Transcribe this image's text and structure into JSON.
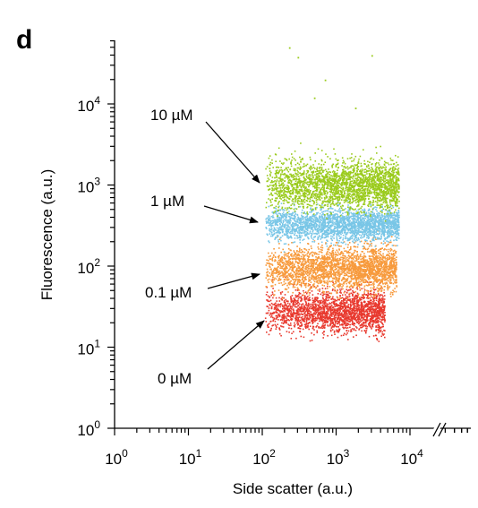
{
  "panel_label": "d",
  "chart_data": {
    "type": "scatter",
    "xlabel": "Side scatter (a.u.)",
    "ylabel": "Fluorescence (a.u.)",
    "x_scale": "log",
    "y_scale": "log",
    "xlim": [
      1,
      80000
    ],
    "ylim": [
      1,
      60000
    ],
    "x_ticks": [
      {
        "value": 1,
        "base": "10",
        "exp": "0"
      },
      {
        "value": 10,
        "base": "10",
        "exp": "1"
      },
      {
        "value": 100,
        "base": "10",
        "exp": "2"
      },
      {
        "value": 1000,
        "base": "10",
        "exp": "3"
      },
      {
        "value": 10000,
        "base": "10",
        "exp": "4"
      }
    ],
    "y_ticks": [
      {
        "value": 1,
        "base": "10",
        "exp": "0"
      },
      {
        "value": 10,
        "base": "10",
        "exp": "1"
      },
      {
        "value": 100,
        "base": "10",
        "exp": "2"
      },
      {
        "value": 1000,
        "base": "10",
        "exp": "3"
      },
      {
        "value": 10000,
        "base": "10",
        "exp": "4"
      }
    ],
    "x_axis_break": true,
    "grid": false,
    "series": [
      {
        "name": "0 µM",
        "color": "#e8392e",
        "x_range": [
          100,
          4500
        ],
        "y_center": 28,
        "y_range": [
          12,
          75
        ],
        "n_points": 2200
      },
      {
        "name": "0.1 µM",
        "color": "#f79a3c",
        "x_range": [
          100,
          6500
        ],
        "y_center": 95,
        "y_range": [
          40,
          260
        ],
        "n_points": 2600
      },
      {
        "name": "1 µM",
        "color": "#79c6e7",
        "x_range": [
          100,
          7000
        ],
        "y_center": 330,
        "y_range": [
          160,
          650
        ],
        "n_points": 2400
      },
      {
        "name": "10 µM",
        "color": "#9acb1c",
        "x_range": [
          100,
          7000
        ],
        "y_center": 1000,
        "y_range": [
          420,
          3500
        ],
        "n_points": 2600,
        "outliers": [
          [
            230,
            50000
          ],
          [
            300,
            38000
          ],
          [
            700,
            20000
          ],
          [
            3000,
            40000
          ],
          [
            500,
            12000
          ],
          [
            1800,
            9000
          ]
        ]
      }
    ],
    "annotations": [
      {
        "text": "10 µM",
        "target_series": "10 µM"
      },
      {
        "text": "1 µM",
        "target_series": "1 µM"
      },
      {
        "text": "0.1 µM",
        "target_series": "0.1 µM"
      },
      {
        "text": "0 µM",
        "target_series": "0 µM"
      }
    ]
  }
}
